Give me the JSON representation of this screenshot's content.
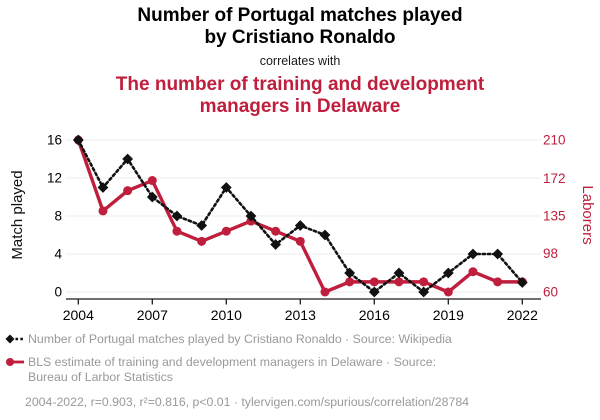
{
  "header": {
    "title_lines": [
      "Number of Portugal matches played",
      "by Cristiano Ronaldo"
    ],
    "connector": "correlates with",
    "subtitle_lines": [
      "The number of training and development",
      "managers in Delaware"
    ],
    "title_color": "#000000",
    "subtitle_color": "#bf1e3c"
  },
  "chart_data": {
    "type": "line",
    "x": [
      2004,
      2005,
      2006,
      2007,
      2008,
      2009,
      2010,
      2011,
      2012,
      2013,
      2014,
      2015,
      2016,
      2017,
      2018,
      2019,
      2020,
      2021,
      2022
    ],
    "series": [
      {
        "name": "Number of Portugal matches played by Cristiano Ronaldo",
        "axis": "left",
        "color": "#111111",
        "marker": "diamond",
        "line_style": "dashed",
        "values": [
          16,
          11,
          14,
          10,
          8,
          7,
          11,
          8,
          5,
          7,
          6,
          2,
          0,
          2,
          0,
          2,
          4,
          4,
          1
        ]
      },
      {
        "name": "BLS estimate of training and development managers in Delaware",
        "axis": "right",
        "color": "#bf1e3c",
        "marker": "circle",
        "line_style": "solid",
        "values": [
          210,
          140,
          160,
          170,
          120,
          110,
          120,
          130,
          120,
          110,
          60,
          70,
          70,
          70,
          70,
          60,
          80,
          70,
          70
        ]
      }
    ],
    "left_axis": {
      "label": "Match played",
      "ticks": [
        0,
        4,
        8,
        12,
        16
      ],
      "range": [
        0,
        16
      ],
      "color": "#000000"
    },
    "right_axis": {
      "label": "Laborers",
      "ticks": [
        60,
        98,
        135,
        172,
        210
      ],
      "range": [
        60,
        210
      ],
      "color": "#bf1e3c"
    },
    "x_axis": {
      "ticks": [
        2004,
        2007,
        2010,
        2013,
        2016,
        2019,
        2022
      ],
      "range": [
        2004,
        2022
      ]
    },
    "grid": true,
    "grid_color": "#f0f0f0",
    "axis_color": "#1a1a1a"
  },
  "legend": {
    "items": [
      {
        "icon": "black-diamond-dashed-icon",
        "lines": [
          "Number of Portugal matches played by Cristiano Ronaldo · Source: Wikipedia"
        ]
      },
      {
        "icon": "red-circle-solid-icon",
        "lines": [
          "BLS estimate of training and development managers in Delaware · Source:",
          "Bureau of Larbor Statistics"
        ]
      }
    ],
    "footnote": "2004-2022, r=0.903, r²=0.816, p<0.01 · tylervigen.com/spurious/correlation/28784"
  }
}
